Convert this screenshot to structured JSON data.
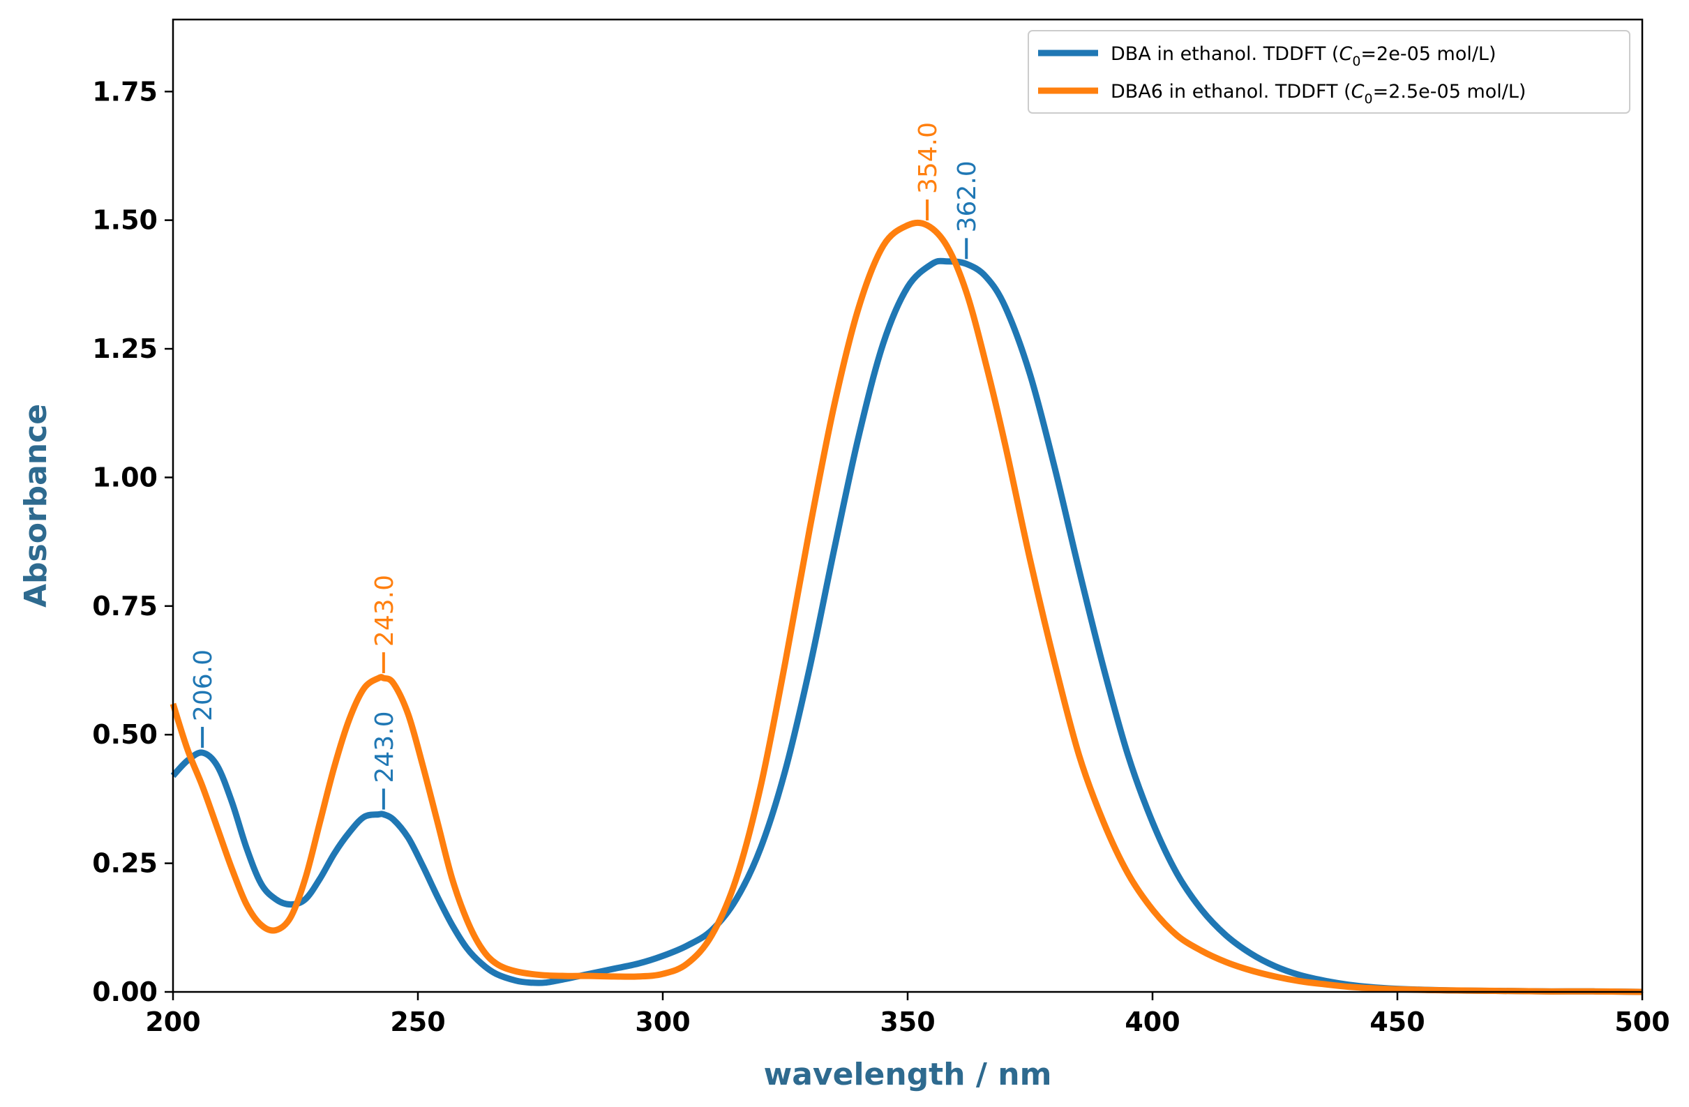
{
  "chart_data": {
    "type": "line",
    "title": "",
    "xlabel": "wavelength / nm",
    "ylabel": "Absorbance",
    "xlim": [
      200,
      500
    ],
    "ylim": [
      0,
      1.89
    ],
    "xticks": [
      "200",
      "250",
      "300",
      "350",
      "400",
      "450",
      "500"
    ],
    "yticks": [
      "0.00",
      "0.25",
      "0.50",
      "0.75",
      "1.00",
      "1.25",
      "1.50",
      "1.75"
    ],
    "grid": false,
    "legend_position": "top-right",
    "axis_label_color": "#2e6a8f",
    "series": [
      {
        "name": "DBA in ethanol. TDDFT (C0=2e-05 mol/L)",
        "legend_parts": {
          "prefix": "DBA in ethanol. TDDFT (",
          "var": "C",
          "sub": "0",
          "suffix": "=2e-05 mol/L)"
        },
        "color": "#1f77b4",
        "x": [
          200,
          203,
          206,
          209,
          212,
          215,
          218,
          221,
          224,
          227,
          230,
          233,
          236,
          239,
          242,
          243,
          245,
          248,
          251,
          254,
          257,
          260,
          263,
          266,
          270,
          273,
          276,
          280,
          285,
          290,
          295,
          300,
          305,
          310,
          315,
          320,
          325,
          330,
          335,
          340,
          345,
          350,
          355,
          358,
          362,
          366,
          370,
          375,
          380,
          385,
          390,
          395,
          400,
          405,
          410,
          415,
          420,
          425,
          430,
          435,
          440,
          445,
          450,
          460,
          470,
          480,
          490,
          500
        ],
        "y": [
          0.42,
          0.45,
          0.465,
          0.44,
          0.37,
          0.28,
          0.21,
          0.18,
          0.17,
          0.18,
          0.22,
          0.27,
          0.31,
          0.34,
          0.345,
          0.345,
          0.335,
          0.3,
          0.245,
          0.185,
          0.13,
          0.085,
          0.055,
          0.035,
          0.022,
          0.018,
          0.018,
          0.025,
          0.035,
          0.045,
          0.055,
          0.07,
          0.09,
          0.12,
          0.18,
          0.28,
          0.43,
          0.63,
          0.86,
          1.08,
          1.26,
          1.37,
          1.415,
          1.42,
          1.415,
          1.39,
          1.33,
          1.2,
          1.02,
          0.82,
          0.63,
          0.46,
          0.33,
          0.23,
          0.16,
          0.11,
          0.075,
          0.05,
          0.033,
          0.022,
          0.014,
          0.009,
          0.006,
          0.003,
          0.002,
          0.001,
          0.001,
          0.0
        ],
        "peaks": [
          {
            "x": 206,
            "y": 0.465,
            "label": "206.0"
          },
          {
            "x": 243,
            "y": 0.345,
            "label": "243.0"
          },
          {
            "x": 362,
            "y": 1.415,
            "label": "362.0"
          }
        ]
      },
      {
        "name": "DBA6 in ethanol. TDDFT (C0=2.5e-05 mol/L)",
        "legend_parts": {
          "prefix": "DBA6 in ethanol. TDDFT (",
          "var": "C",
          "sub": "0",
          "suffix": "=2.5e-05 mol/L)"
        },
        "color": "#ff7f0e",
        "x": [
          200,
          203,
          206,
          209,
          212,
          215,
          218,
          221,
          224,
          227,
          230,
          233,
          236,
          239,
          242,
          243,
          245,
          248,
          251,
          254,
          257,
          260,
          263,
          266,
          270,
          275,
          280,
          285,
          290,
          295,
          300,
          305,
          310,
          315,
          320,
          325,
          330,
          335,
          340,
          345,
          350,
          354,
          358,
          362,
          366,
          370,
          375,
          380,
          385,
          390,
          395,
          400,
          405,
          410,
          415,
          420,
          425,
          430,
          435,
          440,
          445,
          450,
          460,
          470,
          480,
          490,
          500
        ],
        "y": [
          0.56,
          0.47,
          0.4,
          0.32,
          0.24,
          0.17,
          0.13,
          0.12,
          0.145,
          0.22,
          0.33,
          0.44,
          0.53,
          0.59,
          0.61,
          0.61,
          0.6,
          0.54,
          0.44,
          0.33,
          0.22,
          0.14,
          0.085,
          0.055,
          0.04,
          0.033,
          0.031,
          0.031,
          0.03,
          0.03,
          0.035,
          0.055,
          0.11,
          0.22,
          0.4,
          0.64,
          0.9,
          1.14,
          1.33,
          1.45,
          1.49,
          1.49,
          1.45,
          1.36,
          1.22,
          1.06,
          0.84,
          0.64,
          0.46,
          0.33,
          0.23,
          0.16,
          0.11,
          0.08,
          0.058,
          0.042,
          0.03,
          0.021,
          0.015,
          0.01,
          0.007,
          0.005,
          0.003,
          0.002,
          0.001,
          0.001,
          0.0
        ],
        "peaks": [
          {
            "x": 243,
            "y": 0.61,
            "label": "243.0"
          },
          {
            "x": 354,
            "y": 1.49,
            "label": "354.0"
          }
        ]
      }
    ]
  }
}
